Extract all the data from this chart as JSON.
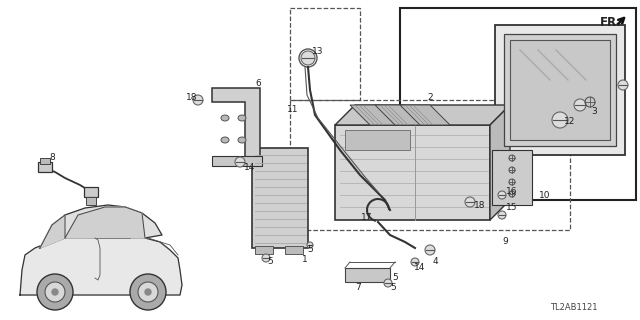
{
  "bg_color": "#ffffff",
  "part_label_id": "TL2AB1121",
  "fr_label": "FR.",
  "fig_width": 6.4,
  "fig_height": 3.2,
  "dpi": 100,
  "line_color": "#333333",
  "text_color": "#222222",
  "font_size": 6.5
}
